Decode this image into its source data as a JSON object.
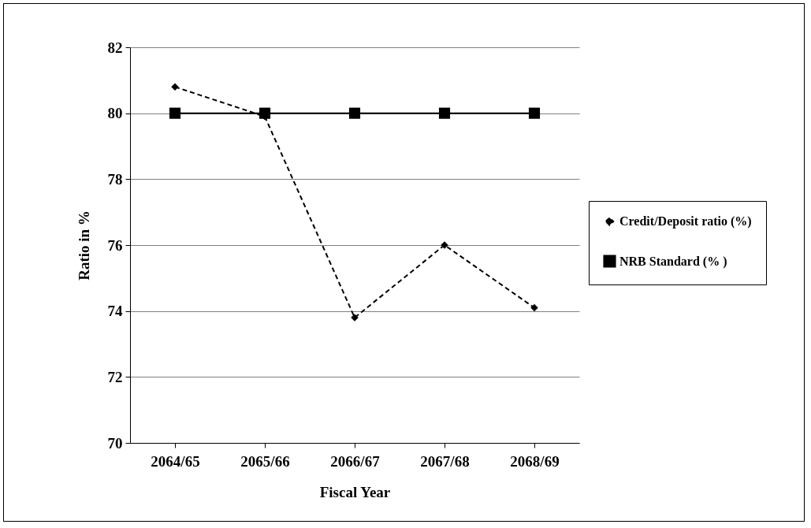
{
  "chart_data": {
    "type": "line",
    "xlabel": "Fiscal Year",
    "ylabel": "Ratio in %",
    "categories": [
      "2064/65",
      "2065/66",
      "2066/67",
      "2067/68",
      "2068/69"
    ],
    "series": [
      {
        "name": "Credit/Deposit ratio (%)",
        "color": "#000000",
        "marker": "diamond",
        "line_style": "dashed",
        "values": [
          80.8,
          79.9,
          73.8,
          76.0,
          74.1
        ]
      },
      {
        "name": "NRB Standard (% )",
        "color": "#000000",
        "marker": "square",
        "line_style": "solid",
        "values": [
          80,
          80,
          80,
          80,
          80
        ]
      }
    ],
    "ylim": [
      70,
      82
    ],
    "yticks": [
      70,
      72,
      74,
      76,
      78,
      80,
      82
    ],
    "grid": "y",
    "legend": "right"
  }
}
